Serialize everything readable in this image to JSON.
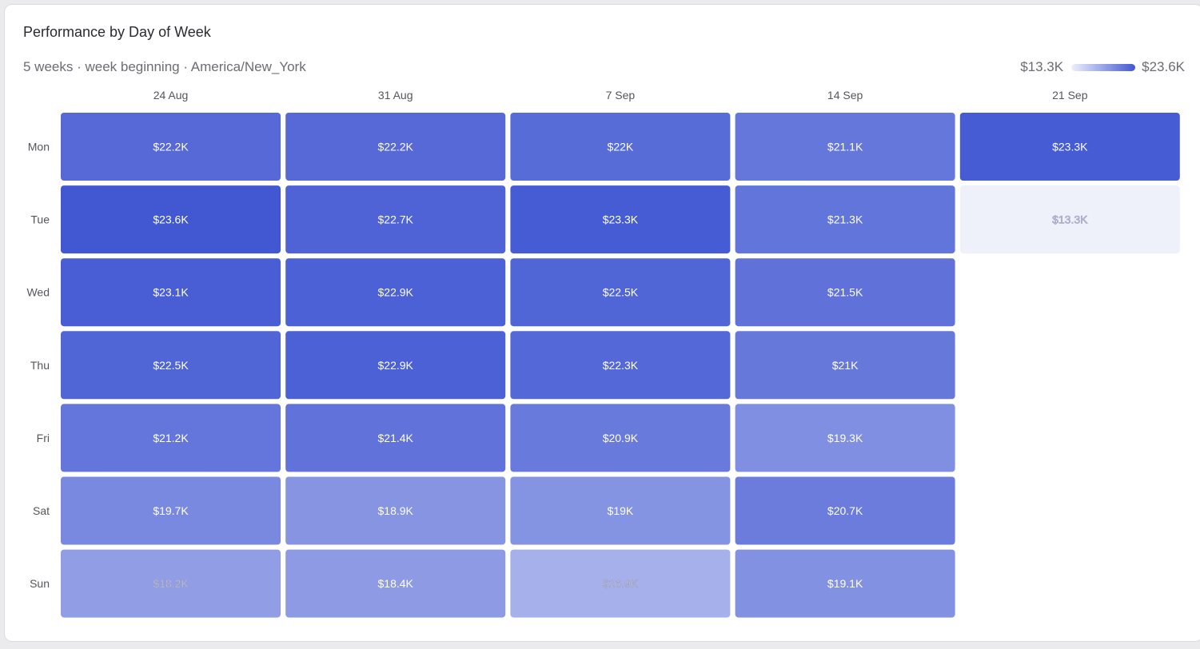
{
  "header": {
    "title": "Performance by Day of Week",
    "subtitle": "5 weeks · week beginning · America/New_York"
  },
  "legend": {
    "min_label": "$13.3K",
    "max_label": "$23.6K"
  },
  "colors": {
    "low": "#eef0fa",
    "high": "#4258d3",
    "label_light": "#ffffff",
    "label_muted": "#c9cbe0"
  },
  "chart_data": {
    "type": "heatmap",
    "title": "Performance by Day of Week",
    "x_categories": [
      "24 Aug",
      "31 Aug",
      "7 Sep",
      "14 Sep",
      "21 Sep"
    ],
    "y_categories": [
      "Mon",
      "Tue",
      "Wed",
      "Thu",
      "Fri",
      "Sat",
      "Sun"
    ],
    "value_range": [
      13300,
      23600
    ],
    "values": [
      [
        22200,
        22200,
        22000,
        21100,
        23300
      ],
      [
        23600,
        22700,
        23300,
        21300,
        13300
      ],
      [
        23100,
        22900,
        22500,
        21500,
        null
      ],
      [
        22500,
        22900,
        22300,
        21000,
        null
      ],
      [
        21200,
        21400,
        20900,
        19300,
        null
      ],
      [
        19700,
        18900,
        19000,
        20700,
        null
      ],
      [
        18200,
        18400,
        16900,
        19100,
        null
      ]
    ],
    "labels": [
      [
        "$22.2K",
        "$22.2K",
        "$22K",
        "$21.1K",
        "$23.3K"
      ],
      [
        "$23.6K",
        "$22.7K",
        "$23.3K",
        "$21.3K",
        "$13.3K"
      ],
      [
        "$23.1K",
        "$22.9K",
        "$22.5K",
        "$21.5K",
        null
      ],
      [
        "$22.5K",
        "$22.9K",
        "$22.3K",
        "$21K",
        null
      ],
      [
        "$21.2K",
        "$21.4K",
        "$20.9K",
        "$19.3K",
        null
      ],
      [
        "$19.7K",
        "$18.9K",
        "$19K",
        "$20.7K",
        null
      ],
      [
        "$18.2K",
        "$18.4K",
        "$16.9K",
        "$19.1K",
        null
      ]
    ]
  }
}
